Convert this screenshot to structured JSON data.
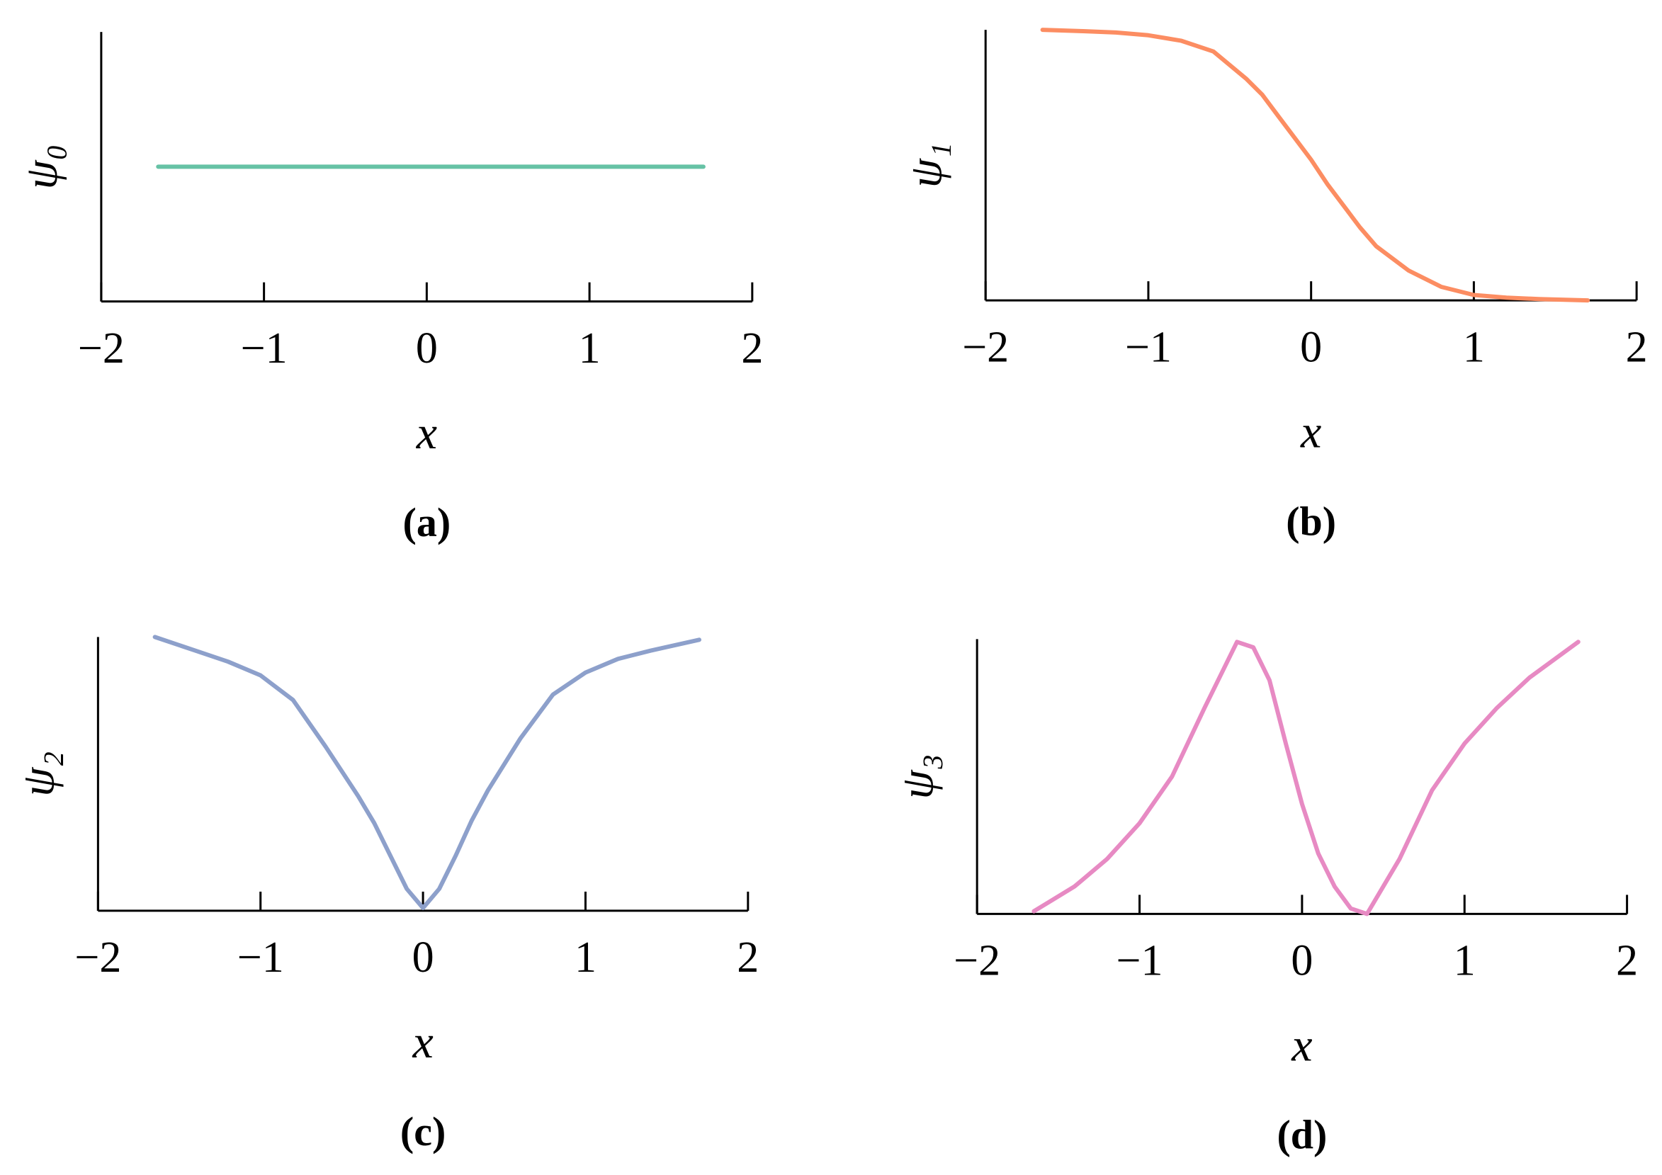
{
  "chart_data": [
    {
      "type": "line",
      "ylabel": "ψ₀",
      "xlabel": "x",
      "caption": "(a)",
      "color": "#66c2a5",
      "x": [
        -1.65,
        1.7
      ],
      "values": [
        0.5,
        0.5
      ],
      "xlim": [
        -2,
        2
      ],
      "ylim": [
        0,
        1
      ],
      "xticks": [
        {
          "value": -2,
          "label": "−2"
        },
        {
          "value": -1,
          "label": "−1"
        },
        0,
        1,
        2
      ]
    },
    {
      "type": "line",
      "ylabel": "ψ₁",
      "xlabel": "x",
      "caption": "(b)",
      "color": "#fc8d62",
      "x": [
        -1.65,
        -1.4,
        -1.2,
        -1.0,
        -0.8,
        -0.6,
        -0.4,
        -0.3,
        -0.2,
        -0.1,
        0,
        0.1,
        0.2,
        0.3,
        0.4,
        0.6,
        0.8,
        1.0,
        1.2,
        1.4,
        1.7
      ],
      "values": [
        1.0,
        0.995,
        0.99,
        0.98,
        0.96,
        0.92,
        0.82,
        0.76,
        0.68,
        0.6,
        0.52,
        0.43,
        0.35,
        0.27,
        0.2,
        0.11,
        0.05,
        0.02,
        0.01,
        0.005,
        0.0
      ],
      "xlim": [
        -2,
        2
      ],
      "ylim": [
        0,
        1
      ],
      "xticks": [
        {
          "value": -2,
          "label": "−2"
        },
        {
          "value": -1,
          "label": "−1"
        },
        0,
        1,
        2
      ]
    },
    {
      "type": "line",
      "ylabel": "ψ₂",
      "xlabel": "x",
      "caption": "(c)",
      "color": "#8da0cb",
      "x": [
        -1.65,
        -1.4,
        -1.2,
        -1.0,
        -0.8,
        -0.6,
        -0.4,
        -0.3,
        -0.2,
        -0.1,
        0,
        0.1,
        0.2,
        0.3,
        0.4,
        0.6,
        0.8,
        1.0,
        1.2,
        1.4,
        1.7
      ],
      "values": [
        1.0,
        0.95,
        0.91,
        0.86,
        0.77,
        0.6,
        0.42,
        0.32,
        0.2,
        0.08,
        0.01,
        0.08,
        0.2,
        0.33,
        0.44,
        0.63,
        0.79,
        0.87,
        0.92,
        0.95,
        0.99
      ],
      "xlim": [
        -2,
        2
      ],
      "ylim": [
        0,
        1
      ],
      "xticks": [
        {
          "value": -2,
          "label": "−2"
        },
        {
          "value": -1,
          "label": "−1"
        },
        0,
        1,
        2
      ]
    },
    {
      "type": "line",
      "ylabel": "ψ₃",
      "xlabel": "x",
      "caption": "(d)",
      "color": "#e78ac3",
      "x": [
        -1.65,
        -1.4,
        -1.2,
        -1.0,
        -0.8,
        -0.6,
        -0.4,
        -0.3,
        -0.2,
        -0.1,
        0,
        0.1,
        0.2,
        0.3,
        0.4,
        0.6,
        0.8,
        1.0,
        1.2,
        1.4,
        1.7
      ],
      "values": [
        0.01,
        0.1,
        0.2,
        0.33,
        0.5,
        0.75,
        0.99,
        0.97,
        0.85,
        0.62,
        0.4,
        0.22,
        0.1,
        0.02,
        0.0,
        0.2,
        0.45,
        0.62,
        0.75,
        0.86,
        0.99
      ],
      "xlim": [
        -2,
        2
      ],
      "ylim": [
        0,
        1
      ],
      "xticks": [
        {
          "value": -2,
          "label": "−2"
        },
        {
          "value": -1,
          "label": "−1"
        },
        0,
        1,
        2
      ]
    }
  ]
}
